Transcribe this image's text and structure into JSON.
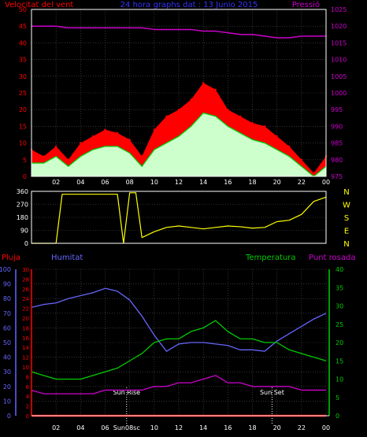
{
  "header": {
    "title": "24 hora graphs dat : 13 Junio 2015",
    "wind_label": "Velocitat del vent",
    "pressure_label": "Pressió"
  },
  "labels": {
    "pluja": "Pluja",
    "humitat": "Humitat",
    "temperatura": "Temperatura",
    "punt_rosada": "Punt rosada",
    "sun_rise": "Sun Rise",
    "sun_set": "Sun Set",
    "sun_08": "Sun08sc"
  },
  "colors": {
    "wind_gust": "#ff0000",
    "wind_avg": "#00cc00",
    "wind_fill": "#ccffcc",
    "pressure": "#cc00cc",
    "direction": "#ffff00",
    "rain": "#ff0000",
    "humidity": "#6666ff",
    "temperature": "#00cc00",
    "dewpoint": "#cc00cc",
    "axis_left": "#ff0000",
    "axis_right": "#6666ff",
    "axis_temp": "#00cc00"
  },
  "chart_data": [
    {
      "type": "area",
      "name": "wind",
      "xlabel": "",
      "ylabel": "",
      "x_ticks": [
        "02",
        "04",
        "06",
        "08",
        "10",
        "12",
        "14",
        "16",
        "18",
        "20",
        "22",
        "00"
      ],
      "x_range": [
        0,
        24
      ],
      "y_left_ticks": [
        "0",
        "5",
        "10",
        "15",
        "20",
        "25",
        "30",
        "35",
        "40",
        "45",
        "50"
      ],
      "y_left_range": [
        0,
        50
      ],
      "y_right_ticks": [
        "975",
        "980",
        "985",
        "990",
        "995",
        "1000",
        "1005",
        "1010",
        "1015",
        "1020",
        "1025"
      ],
      "y_right_range": [
        975,
        1025
      ],
      "hours": [
        0,
        1,
        2,
        3,
        4,
        5,
        6,
        7,
        8,
        9,
        10,
        11,
        12,
        13,
        14,
        15,
        16,
        17,
        18,
        19,
        20,
        21,
        22,
        23,
        24
      ],
      "gust": [
        8,
        6,
        9,
        5,
        10,
        12,
        14,
        13,
        11,
        6,
        14,
        18,
        20,
        23,
        28,
        26,
        20,
        18,
        16,
        15,
        12,
        9,
        5,
        1,
        6
      ],
      "average": [
        4,
        4,
        6,
        3,
        6,
        8,
        9,
        9,
        7,
        3,
        8,
        10,
        12,
        15,
        19,
        18,
        15,
        13,
        11,
        10,
        8,
        6,
        3,
        0,
        3
      ],
      "pressure": [
        1020,
        1020,
        1020,
        1019.5,
        1019.5,
        1019.5,
        1019.5,
        1019.5,
        1019.5,
        1019.5,
        1019,
        1019,
        1019,
        1019,
        1018.5,
        1018.5,
        1018,
        1017.5,
        1017.5,
        1017,
        1016.5,
        1016.5,
        1017,
        1017,
        1017
      ]
    },
    {
      "type": "line",
      "name": "wind-direction",
      "x_range": [
        0,
        24
      ],
      "y_ticks": [
        "0",
        "90",
        "180",
        "270",
        "360"
      ],
      "y_range": [
        0,
        360
      ],
      "compass_labels": [
        "N",
        "W",
        "S",
        "E",
        "N"
      ],
      "hours": [
        0,
        1,
        2,
        2.5,
        3,
        4,
        5,
        6,
        7,
        7.5,
        8,
        8.5,
        9,
        10,
        11,
        12,
        13,
        14,
        15,
        16,
        17,
        18,
        19,
        20,
        21,
        22,
        23,
        24
      ],
      "direction": [
        0,
        0,
        0,
        340,
        340,
        340,
        340,
        340,
        340,
        0,
        350,
        350,
        40,
        80,
        110,
        120,
        110,
        100,
        110,
        120,
        115,
        105,
        110,
        150,
        160,
        200,
        290,
        320
      ]
    },
    {
      "type": "line",
      "name": "temperature-humidity",
      "x_range": [
        0,
        24
      ],
      "x_ticks": [
        "02",
        "04",
        "06",
        "08",
        "10",
        "12",
        "14",
        "16",
        "18",
        "20",
        "22",
        "00"
      ],
      "y_humidity_ticks": [
        "0",
        "10",
        "20",
        "30",
        "40",
        "50",
        "60",
        "70",
        "80",
        "90",
        "100"
      ],
      "y_humidity_range": [
        0,
        100
      ],
      "y_rain_ticks": [
        "0",
        "2",
        "4",
        "6",
        "8",
        "10",
        "12",
        "14",
        "16",
        "18",
        "20",
        "22",
        "24",
        "26",
        "28",
        "30"
      ],
      "y_rain_range": [
        0,
        30
      ],
      "y_temp_ticks": [
        "0",
        "5",
        "10",
        "15",
        "20",
        "25",
        "30",
        "35",
        "40"
      ],
      "y_temp_range": [
        0,
        40
      ],
      "hours": [
        0,
        1,
        2,
        3,
        4,
        5,
        6,
        7,
        8,
        9,
        10,
        11,
        12,
        13,
        14,
        15,
        16,
        17,
        18,
        19,
        20,
        21,
        22,
        23,
        24
      ],
      "humidity": [
        74,
        76,
        77,
        80,
        82,
        84,
        87,
        85,
        79,
        68,
        55,
        44,
        49,
        50,
        50,
        49,
        48,
        45,
        45,
        44,
        51,
        56,
        61,
        66,
        70
      ],
      "temperature": [
        12,
        11,
        10,
        10,
        10,
        11,
        12,
        13,
        15,
        17,
        20,
        21,
        21,
        23,
        24,
        26,
        23,
        21,
        21,
        20,
        20,
        18,
        17,
        16,
        15
      ],
      "dewpoint": [
        7,
        6,
        6,
        6,
        6,
        6,
        7,
        7,
        7,
        7,
        8,
        8,
        9,
        9,
        10,
        11,
        9,
        9,
        8,
        8,
        8,
        8,
        7,
        7,
        7
      ],
      "rain": [
        0,
        0,
        0,
        0,
        0,
        0,
        0,
        0,
        0,
        0,
        0,
        0,
        0,
        0,
        0,
        0,
        0,
        0,
        0,
        0,
        0,
        0,
        0,
        0,
        0
      ],
      "sun_rise_hour": 7.75,
      "sun_set_hour": 19.6
    }
  ]
}
